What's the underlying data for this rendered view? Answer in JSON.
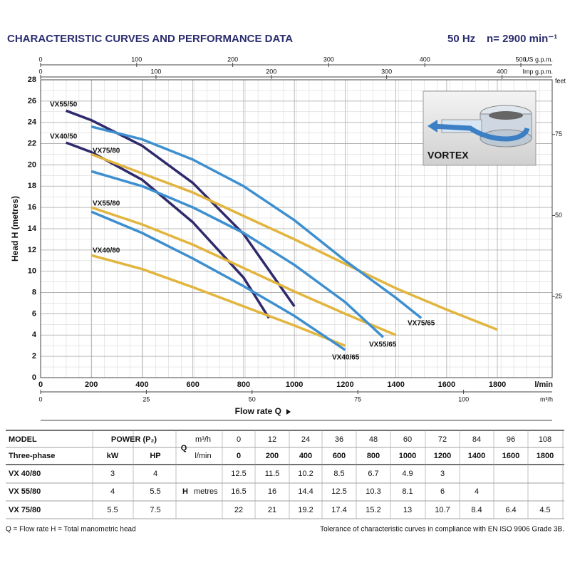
{
  "chart_data": {
    "type": "line",
    "title": "CHARACTERISTIC CURVES AND PERFORMANCE DATA",
    "frequency": "50 Hz",
    "speed": "n= 2900 min⁻¹",
    "xlabel": "Flow rate Q",
    "ylabel": "Head  H  (metres)",
    "xunit": "l/min",
    "xlim": [
      0,
      2016
    ],
    "xticks": [
      0,
      200,
      400,
      600,
      800,
      1000,
      1200,
      1400,
      1600,
      1800
    ],
    "ylim": [
      0,
      28
    ],
    "yticks": [
      0,
      2,
      4,
      6,
      8,
      10,
      12,
      14,
      16,
      18,
      20,
      22,
      24,
      26,
      28
    ],
    "grid": true,
    "m3h_axis": {
      "unit": "m³/h",
      "lim": [
        0,
        120.96
      ],
      "ticks": [
        0,
        25,
        50,
        75,
        100
      ]
    },
    "usgpm_axis": {
      "unit": "US g.p.m.",
      "lim": [
        0,
        532.6
      ],
      "ticks": [
        0,
        100,
        200,
        300,
        400,
        500
      ]
    },
    "impgpm_axis": {
      "unit": "Imp g.p.m.",
      "lim": [
        0,
        443.5
      ],
      "ticks": [
        0,
        100,
        200,
        300,
        400
      ]
    },
    "feet_axis": {
      "unit": "feet",
      "lim": [
        0,
        91.86
      ],
      "ticks": [
        25,
        50,
        75
      ]
    },
    "inset_label": "VORTEX",
    "series": [
      {
        "name": "VX55/50",
        "color": "#2e2a6b",
        "x": [
          100,
          200,
          400,
          600,
          800,
          1000
        ],
        "values": [
          25.1,
          24.2,
          21.8,
          18.3,
          13.5,
          6.7
        ]
      },
      {
        "name": "VX40/50",
        "color": "#2e2a6b",
        "x": [
          100,
          200,
          400,
          600,
          800,
          900
        ],
        "values": [
          22.1,
          21.2,
          18.6,
          14.6,
          9.4,
          5.6
        ]
      },
      {
        "name": "VX75/80",
        "color": "#e2b53e",
        "x": [
          200,
          400,
          600,
          800,
          1000,
          1200,
          1400,
          1600,
          1800
        ],
        "values": [
          21,
          19.2,
          17.4,
          15.2,
          13,
          10.7,
          8.4,
          6.4,
          4.5
        ]
      },
      {
        "name": "VX55/80",
        "color": "#e2b53e",
        "x": [
          200,
          400,
          600,
          800,
          1000,
          1200,
          1400
        ],
        "values": [
          16,
          14.4,
          12.5,
          10.3,
          8.1,
          6,
          4
        ]
      },
      {
        "name": "VX40/80",
        "color": "#e2b53e",
        "x": [
          200,
          400,
          600,
          800,
          1000,
          1200
        ],
        "values": [
          11.5,
          10.2,
          8.5,
          6.7,
          4.9,
          3
        ]
      },
      {
        "name": "VX75/65",
        "color": "#3d8fd0",
        "x": [
          200,
          400,
          600,
          800,
          1000,
          1200,
          1400,
          1500
        ],
        "values": [
          23.6,
          22.4,
          20.5,
          18,
          14.8,
          11,
          7.5,
          5.6
        ]
      },
      {
        "name": "VX55/65",
        "color": "#3d8fd0",
        "x": [
          200,
          400,
          600,
          800,
          1000,
          1200,
          1350
        ],
        "values": [
          19.4,
          18,
          16,
          13.6,
          10.6,
          7.1,
          3.8
        ]
      },
      {
        "name": "VX40/65",
        "color": "#3d8fd0",
        "x": [
          200,
          400,
          600,
          800,
          1000,
          1200
        ],
        "values": [
          15.6,
          13.6,
          11.2,
          8.6,
          5.8,
          2.6
        ]
      }
    ]
  },
  "table": {
    "model_label": "MODEL",
    "power_label": "POWER (P₂)",
    "phase_label": "Three-phase",
    "kw_label": "kW",
    "hp_label": "HP",
    "q_label": "Q",
    "h_label": "H",
    "metres_label": "metres",
    "m3h_label": "m³/h",
    "lmin_label": "l/min",
    "m3h": [
      0,
      12,
      24,
      36,
      48,
      60,
      72,
      84,
      96,
      108
    ],
    "lmin": [
      0,
      200,
      400,
      600,
      800,
      1000,
      1200,
      1400,
      1600,
      1800
    ],
    "rows": [
      {
        "model": "VX 40/80",
        "kw": 3,
        "hp": 4,
        "heads": [
          12.5,
          11.5,
          10.2,
          8.5,
          6.7,
          4.9,
          3,
          null,
          null,
          null
        ]
      },
      {
        "model": "VX 55/80",
        "kw": 4,
        "hp": 5.5,
        "heads": [
          16.5,
          16,
          14.4,
          12.5,
          10.3,
          8.1,
          6,
          4,
          null,
          null
        ]
      },
      {
        "model": "VX 75/80",
        "kw": 5.5,
        "hp": 7.5,
        "heads": [
          22,
          21,
          19.2,
          17.4,
          15.2,
          13,
          10.7,
          8.4,
          6.4,
          4.5
        ]
      }
    ]
  },
  "footnotes": {
    "left": "Q = Flow rate  H = Total manometric head",
    "right": "Tolerance of characteristic curves in compliance with EN ISO 9906 Grade 3B."
  }
}
